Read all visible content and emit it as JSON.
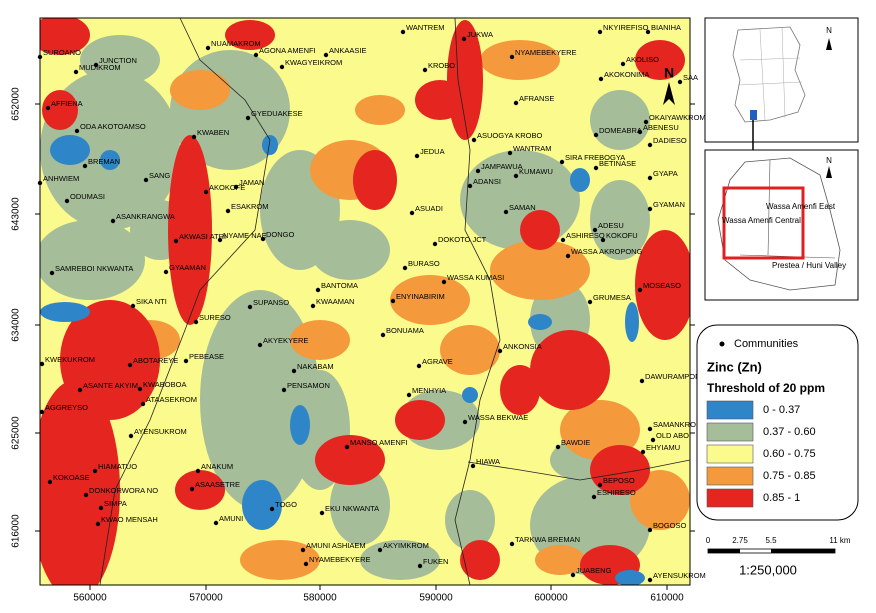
{
  "map": {
    "x_ticks": [
      "560000",
      "570000",
      "580000",
      "590000",
      "600000",
      "610000"
    ],
    "y_ticks": [
      "652000",
      "643000",
      "634000",
      "625000",
      "616000"
    ],
    "north": "N",
    "communities": [
      "WANTREM",
      "JUKWA",
      "NKYIREFISO",
      "BIANIHA",
      "SUROANO",
      "NUAMAKROM",
      "AGONA AMENFI",
      "ANKAASIE",
      "NYAMEBEKYERE",
      "JUNCTION",
      "MUDIKROM",
      "KWAGYEIKROM",
      "KROBO",
      "AKOLISO",
      "SAA",
      "AKOKONIMA",
      "AFFIENA",
      "AFRANSE",
      "GYEDUAKESE",
      "ODA AKOTOAMSO",
      "KWABEN",
      "OKAIYAWKROM",
      "ABENESU",
      "DOMEABRA",
      "ASUOGYA KROBO",
      "DADIESO",
      "WANTRAM",
      "JEDUA",
      "SIRA FREBOGYA",
      "BETINASE",
      "BREMAN",
      "JAMPAWUA",
      "KUMAWU",
      "GYAPA",
      "SANG",
      "ANHWIEM",
      "JAMAN",
      "ADANSI",
      "AKOKOFE",
      "ODUMASI",
      "SAMAN",
      "GYAMAN",
      "ESAKROM",
      "ASUADI",
      "ASANKRANGWA",
      "ADESU",
      "AKWASI ATRI",
      "NYAME NAE",
      "DONGO",
      "DOKOTO JCT",
      "ASHIRESO",
      "KOKOFU",
      "WASSA AKROPONG",
      "SAMREBOI NKWANTA",
      "GYAAMAN",
      "BURASO",
      "WASSA KUMASI",
      "BANTOMA",
      "ENYINABIRIM",
      "SIKA NTI",
      "SUPANSO",
      "KWAAMAN",
      "MOSEASO",
      "GRUMESA",
      "SURESO",
      "BONUAMA",
      "AKYEKYERE",
      "ANKONSIA",
      "KWEKUKROM",
      "ABOTAREYE",
      "PEBEASE",
      "NAKABAM",
      "AGRAVE",
      "DAWURAMPON",
      "ASANTE AKYIM",
      "KWABOBOA",
      "PENSAMON",
      "ATAASEKROM",
      "MENHYIA",
      "AGGREYSO",
      "WASSA BEKWAE",
      "AYENSUKROM",
      "SAMANKROM",
      "OLD ABOI",
      "MANSO AMENFI",
      "BAWDIE",
      "EHYIAMU",
      "HIAMATUO",
      "HIAWA",
      "ANAKUM",
      "KOKOASE",
      "BEPOSO",
      "DONKORWORA NO",
      "ASAASETRE",
      "ESHIRESO",
      "SIMPA",
      "TOGO",
      "EKU NKWANTA",
      "KWAO MENSAH",
      "AMUNI",
      "BOGOSO",
      "TARKWA BREMAN",
      "AMUNI ASHIAEM",
      "AKYIMKROM",
      "NYAMEBEKYERE",
      "FUKEN",
      "JUABENG",
      "AYENSUKROM"
    ]
  },
  "legend": {
    "communities": "Communities",
    "title": "Zinc (Zn)",
    "subtitle": "Threshold of 20 ppm",
    "classes": [
      {
        "label": "0 - 0.37",
        "color": "#2e86c9"
      },
      {
        "label": "0.37 - 0.60",
        "color": "#a5bd99"
      },
      {
        "label": "0.60 - 0.75",
        "color": "#fbfa8c"
      },
      {
        "label": "0.75 - 0.85",
        "color": "#f4993c"
      },
      {
        "label": "0.85 - 1",
        "color": "#e42520"
      }
    ]
  },
  "inset": {
    "north": "N",
    "districts": [
      "Wassa Amenfi East",
      "Wassa Amenfi Central",
      "Prestea / Huni Valley"
    ]
  },
  "scale": {
    "ticks": [
      "0",
      "2.75",
      "5.5",
      "11 km"
    ],
    "ratio": "1:250,000"
  }
}
